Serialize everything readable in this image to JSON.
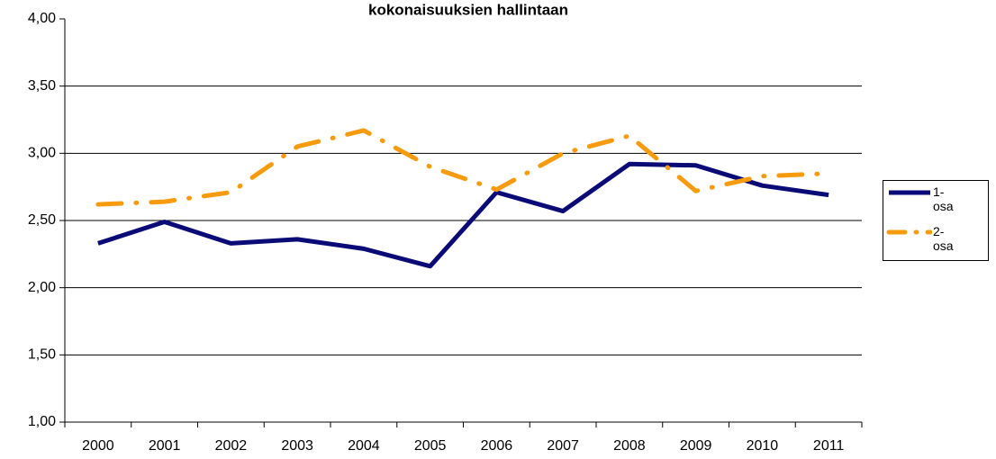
{
  "chart_data": {
    "type": "line",
    "title": "kokonaisuuksien hallintaan",
    "categories": [
      "2000",
      "2001",
      "2002",
      "2003",
      "2004",
      "2005",
      "2006",
      "2007",
      "2008",
      "2009",
      "2010",
      "2011"
    ],
    "series": [
      {
        "name": "1-osa",
        "color": "#0b0b78",
        "dashed": false,
        "values": [
          2.33,
          2.49,
          2.33,
          2.36,
          2.29,
          2.16,
          2.71,
          2.57,
          2.92,
          2.91,
          2.76,
          2.69
        ]
      },
      {
        "name": "2-osa",
        "color": "#f79b0e",
        "dashed": true,
        "values": [
          2.62,
          2.64,
          2.71,
          3.05,
          3.17,
          2.9,
          2.73,
          3.0,
          3.13,
          2.72,
          2.83,
          2.85
        ]
      }
    ],
    "ylim": [
      1,
      4
    ],
    "yticks": [
      {
        "value": 1,
        "label": "1,00"
      },
      {
        "value": 1.5,
        "label": "1,50"
      },
      {
        "value": 2,
        "label": "2,00"
      },
      {
        "value": 2.5,
        "label": "2,50"
      },
      {
        "value": 3,
        "label": "3,00"
      },
      {
        "value": 3.5,
        "label": "3,50"
      },
      {
        "value": 4,
        "label": "4,00"
      }
    ],
    "grid": true,
    "legend": "right"
  }
}
